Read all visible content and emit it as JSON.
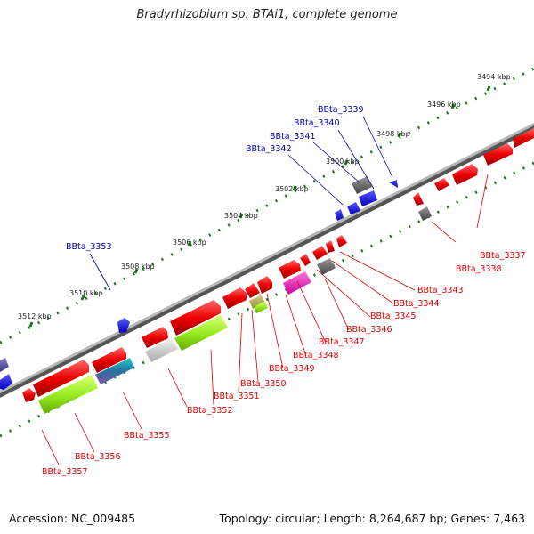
{
  "title": "Bradyrhizobium sp. BTAi1, complete genome",
  "footer": {
    "accession": "Accession: NC_009485",
    "topology": "Topology: circular; Length: 8,264,687 bp; Genes: 7,463"
  },
  "colors": {
    "forward_label": "#0000aa",
    "reverse_label": "#dd0000",
    "ruler_dots": "#1a7a1a",
    "backbone": "#888888"
  },
  "ruler_labels": [
    "3494 kbp",
    "3496 kbp",
    "3498 kbp",
    "3500 kbp",
    "3502 kbp",
    "3504 kbp",
    "3506 kbp",
    "3508 kbp",
    "3510 kbp",
    "3512 kbp"
  ],
  "forward_genes": [
    "BBta_3339",
    "BBta_3340",
    "BBta_3341",
    "BBta_3342",
    "BBta_3353"
  ],
  "reverse_genes": [
    "BBta_3337",
    "BBta_3338",
    "BBta_3343",
    "BBta_3344",
    "BBta_3345",
    "BBta_3346",
    "BBta_3347",
    "BBta_3348",
    "BBta_3349",
    "BBta_3350",
    "BBta_3351",
    "BBta_3352",
    "BBta_3355",
    "BBta_3356",
    "BBta_3357"
  ]
}
